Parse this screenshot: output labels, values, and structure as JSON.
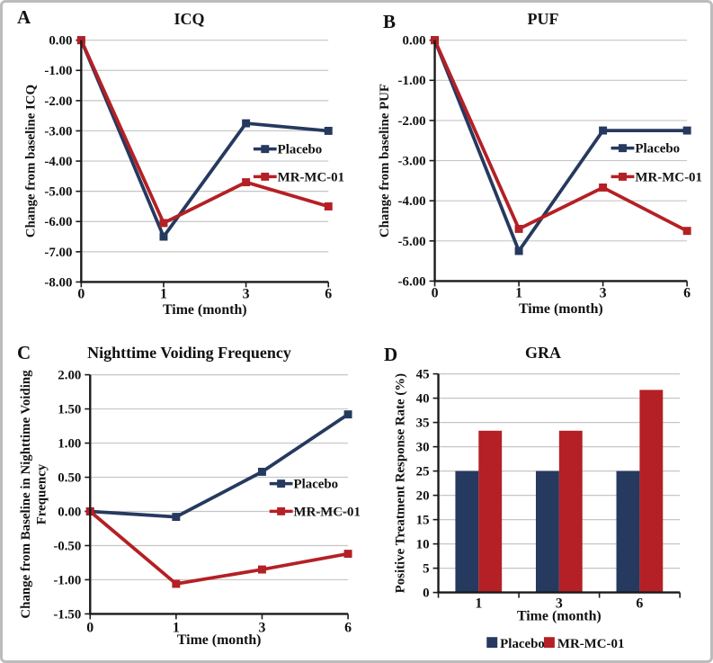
{
  "figure": {
    "colors": {
      "placebo": "#26395f",
      "mr_mc_01": "#b42025",
      "grid": "#c6c6c6",
      "axis": "#1a1a1a",
      "border": "#bcbcbc",
      "text": "#111111"
    }
  },
  "chart_data": [
    {
      "panel_label": "A",
      "type": "line",
      "title": "ICQ",
      "xlabel": "Time (month)",
      "ylabel": "Change from baseline ICQ",
      "categories": [
        "0",
        "1",
        "3",
        "6"
      ],
      "ylim": [
        -8,
        0
      ],
      "ytick_values": [
        0,
        -1,
        -2,
        -3,
        -4,
        -5,
        -6,
        -7,
        -8
      ],
      "ytick_labels": [
        "0.00",
        "-1.00",
        "-2.00",
        "-3.00",
        "-4.00",
        "-5.00",
        "-6.00",
        "-7.00",
        "-8.00"
      ],
      "grid": true,
      "legend_position": "inside-right",
      "series": [
        {
          "name": "Placebo",
          "color": "placebo",
          "values": [
            0,
            -6.5,
            -2.75,
            -3.0
          ]
        },
        {
          "name": "MR-MC-01",
          "color": "mr_mc_01",
          "values": [
            0,
            -6.05,
            -4.7,
            -5.5
          ]
        }
      ]
    },
    {
      "panel_label": "B",
      "type": "line",
      "title": "PUF",
      "xlabel": "Time (month)",
      "ylabel": "Change from baseline PUF",
      "categories": [
        "0",
        "1",
        "3",
        "6"
      ],
      "ylim": [
        -6,
        0
      ],
      "ytick_values": [
        0,
        -1,
        -2,
        -3,
        -4,
        -5,
        -6
      ],
      "ytick_labels": [
        "0.00",
        "-1.00",
        "-2.00",
        "-3.00",
        "-4.00",
        "-5.00",
        "-6.00"
      ],
      "grid": true,
      "legend_position": "inside-right",
      "series": [
        {
          "name": "Placebo",
          "color": "placebo",
          "values": [
            0,
            -5.25,
            -2.25,
            -2.25
          ]
        },
        {
          "name": "MR-MC-01",
          "color": "mr_mc_01",
          "values": [
            0,
            -4.7,
            -3.67,
            -4.75
          ]
        }
      ]
    },
    {
      "panel_label": "C",
      "type": "line",
      "title": "Nighttime Voiding Frequency",
      "xlabel": "Time (month)",
      "ylabel": "Change from Baseline in Nighttime Voiding Frequency",
      "ylabel_lines": [
        "Change from Baseline in Nighttime Voiding",
        "Frequency"
      ],
      "categories": [
        "0",
        "1",
        "3",
        "6"
      ],
      "ylim": [
        -1.5,
        2
      ],
      "ytick_values": [
        2,
        1.5,
        1,
        0.5,
        0,
        -0.5,
        -1,
        -1.5
      ],
      "ytick_labels": [
        "2.00",
        "1.50",
        "1.00",
        "0.50",
        "0.00",
        "-0.50",
        "-1.00",
        "-1.50"
      ],
      "grid": true,
      "legend_position": "inside-right",
      "series": [
        {
          "name": "Placebo",
          "color": "placebo",
          "values": [
            0,
            -0.08,
            0.58,
            1.42
          ]
        },
        {
          "name": "MR-MC-01",
          "color": "mr_mc_01",
          "values": [
            0,
            -1.06,
            -0.85,
            -0.62
          ]
        }
      ]
    },
    {
      "panel_label": "D",
      "type": "bar",
      "title": "GRA",
      "xlabel": "Time (month)",
      "ylabel": "Positive Treatment Response Rate (%)",
      "categories": [
        "1",
        "3",
        "6"
      ],
      "ylim": [
        0,
        45
      ],
      "ytick_values": [
        45,
        40,
        35,
        30,
        25,
        20,
        15,
        10,
        5,
        0
      ],
      "ytick_labels": [
        "45",
        "40",
        "35",
        "30",
        "25",
        "20",
        "15",
        "10",
        "5",
        "0"
      ],
      "grid": true,
      "legend_position": "bottom",
      "series": [
        {
          "name": "Placebo",
          "color": "placebo",
          "values": [
            25,
            25,
            25
          ]
        },
        {
          "name": "MR-MC-01",
          "color": "mr_mc_01",
          "values": [
            33.3,
            33.3,
            41.7
          ]
        }
      ]
    }
  ]
}
